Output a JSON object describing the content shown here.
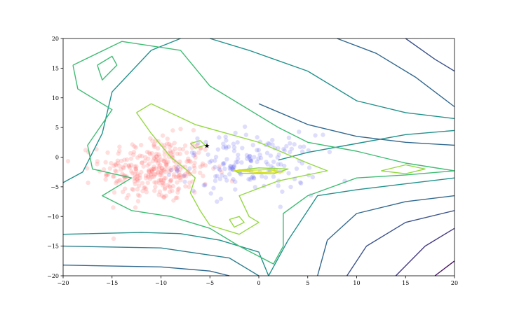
{
  "chart_data": {
    "type": "scatter",
    "title": "",
    "xlabel": "",
    "ylabel": "",
    "xlim": [
      -20,
      20
    ],
    "ylim": [
      -20,
      20
    ],
    "xticks": [
      -20,
      -15,
      -10,
      -5,
      0,
      5,
      10,
      15,
      20
    ],
    "yticks": [
      -20,
      -15,
      -10,
      -5,
      0,
      5,
      10,
      15,
      20
    ],
    "xtick_labels": [
      "−20",
      "−15",
      "−10",
      "−5",
      "0",
      "5",
      "10",
      "15",
      "20"
    ],
    "ytick_labels": [
      "−20",
      "−15",
      "−10",
      "−5",
      "0",
      "5",
      "10",
      "15",
      "20"
    ],
    "grid": false,
    "colors": {
      "class_a": "#ff6b6b",
      "class_b": "#5b5bf0",
      "marker": "#000000"
    },
    "star_point": {
      "x": -5.3,
      "y": 1.9
    },
    "series": [
      {
        "color": "#ff6b6b",
        "alpha": 0.22,
        "center": [
          -10.5,
          -2.0
        ],
        "spread": [
          2.8,
          2.8
        ],
        "count": 320
      },
      {
        "color": "#5b5bf0",
        "alpha": 0.2,
        "center": [
          -1.0,
          -1.2
        ],
        "spread": [
          3.5,
          2.5
        ],
        "count": 170
      }
    ],
    "contours": [
      {
        "color": "#31688e",
        "points": [
          [
            -20,
            -18.2
          ],
          [
            -10,
            -18.5
          ],
          [
            -5,
            -19.2
          ],
          [
            -3,
            -20
          ]
        ]
      },
      {
        "color": "#2c7f8e",
        "points": [
          [
            -20,
            -15
          ],
          [
            -10,
            -15.3
          ],
          [
            -3,
            -17
          ],
          [
            0,
            -20
          ]
        ]
      },
      {
        "color": "#21918c",
        "points": [
          [
            -20,
            -13
          ],
          [
            -12,
            -12.7
          ],
          [
            -8,
            -12.9
          ],
          [
            -4,
            -14
          ],
          [
            0,
            -16
          ],
          [
            1,
            -20
          ]
        ]
      },
      {
        "color": "#21918c",
        "points": [
          [
            -20,
            -4.3
          ],
          [
            -18,
            -2.5
          ],
          [
            -16,
            4
          ],
          [
            -15,
            11
          ],
          [
            -11,
            18
          ],
          [
            -8,
            20
          ]
        ]
      },
      {
        "color": "#21918c",
        "points": [
          [
            -5,
            20
          ],
          [
            -1,
            18
          ],
          [
            5,
            14.5
          ],
          [
            10,
            9.5
          ],
          [
            15,
            7.5
          ],
          [
            20,
            6.5
          ]
        ]
      },
      {
        "color": "#21918c",
        "points": [
          [
            20,
            4.5
          ],
          [
            15,
            3.8
          ],
          [
            10,
            2.3
          ],
          [
            5,
            0.8
          ],
          [
            2,
            -0.5
          ]
        ]
      },
      {
        "color": "#21918c",
        "points": [
          [
            20,
            -3.5
          ],
          [
            15,
            -4.5
          ],
          [
            10,
            -5.5
          ],
          [
            6,
            -6.5
          ],
          [
            3,
            -14
          ],
          [
            1,
            -20
          ]
        ]
      },
      {
        "color": "#31688e",
        "points": [
          [
            8,
            20
          ],
          [
            12,
            17.5
          ],
          [
            16,
            13.5
          ],
          [
            20,
            8.5
          ]
        ]
      },
      {
        "color": "#31688e",
        "points": [
          [
            20,
            2
          ],
          [
            15,
            2.5
          ],
          [
            10,
            3.5
          ],
          [
            5,
            5.5
          ],
          [
            0,
            9
          ]
        ]
      },
      {
        "color": "#31688e",
        "points": [
          [
            20,
            -6.5
          ],
          [
            15,
            -7.5
          ],
          [
            10,
            -9.5
          ],
          [
            7,
            -14
          ],
          [
            6,
            -20
          ]
        ]
      },
      {
        "color": "#3b528b",
        "points": [
          [
            15,
            20
          ],
          [
            18,
            16.5
          ],
          [
            20,
            14.5
          ]
        ]
      },
      {
        "color": "#3b528b",
        "points": [
          [
            20,
            -9
          ],
          [
            15,
            -11
          ],
          [
            11,
            -15
          ],
          [
            9,
            -20
          ]
        ]
      },
      {
        "color": "#443983",
        "points": [
          [
            20,
            -12
          ],
          [
            17,
            -15
          ],
          [
            14,
            -20
          ]
        ]
      },
      {
        "color": "#471365",
        "points": [
          [
            20,
            -17.5
          ],
          [
            18,
            -20
          ]
        ]
      },
      {
        "color": "#3fbc73",
        "points": [
          [
            -19,
            15.5
          ],
          [
            -14,
            19.5
          ],
          [
            -8,
            18
          ],
          [
            -5,
            12
          ],
          [
            2,
            5
          ],
          [
            5,
            2.5
          ],
          [
            10,
            1
          ],
          [
            15,
            -1
          ],
          [
            20,
            -2.3
          ],
          [
            15,
            -3
          ],
          [
            10,
            -3.5
          ],
          [
            5,
            -6.5
          ],
          [
            2.5,
            -9.5
          ],
          [
            2.5,
            -15
          ],
          [
            1.5,
            -18
          ],
          [
            -2,
            -15
          ],
          [
            -5,
            -12
          ],
          [
            -9,
            -10
          ],
          [
            -13,
            -9
          ],
          [
            -16,
            -6.5
          ],
          [
            -13,
            -3.5
          ],
          [
            -17,
            -2
          ],
          [
            -17.5,
            2
          ],
          [
            -15,
            8
          ],
          [
            -18.5,
            11.5
          ],
          [
            -19,
            15.5
          ]
        ]
      },
      {
        "color": "#3fbc73",
        "points": [
          [
            -16.5,
            15.5
          ],
          [
            -15,
            17
          ],
          [
            -14.5,
            15.5
          ],
          [
            -16,
            13
          ],
          [
            -16.5,
            15.5
          ]
        ]
      },
      {
        "color": "#94d840",
        "points": [
          [
            -12.5,
            7.5
          ],
          [
            -11,
            9
          ],
          [
            -6.5,
            5.5
          ],
          [
            0,
            2.5
          ],
          [
            5,
            -1
          ],
          [
            7,
            -2.3
          ],
          [
            2,
            -4
          ],
          [
            -2,
            -6.5
          ],
          [
            -1,
            -10
          ],
          [
            0,
            -11
          ],
          [
            -2,
            -13
          ],
          [
            -5,
            -11.5
          ],
          [
            -6,
            -9
          ],
          [
            -7,
            -6
          ],
          [
            -6.5,
            -3.5
          ],
          [
            -7.5,
            -2
          ],
          [
            -9,
            0
          ],
          [
            -11,
            4
          ],
          [
            -12.5,
            7.5
          ]
        ]
      },
      {
        "color": "#94d840",
        "points": [
          [
            -7,
            2.3
          ],
          [
            -6,
            2.8
          ],
          [
            -5.5,
            2
          ],
          [
            -6.5,
            1.5
          ],
          [
            -7,
            2.3
          ]
        ]
      },
      {
        "color": "#94d840",
        "points": [
          [
            -3,
            -10.5
          ],
          [
            -2,
            -10
          ],
          [
            -1.5,
            -11
          ],
          [
            -2.5,
            -11.8
          ],
          [
            -3,
            -10.5
          ]
        ]
      },
      {
        "color": "#94d840",
        "points": [
          [
            -2.5,
            -2.3
          ],
          [
            0,
            -1.8
          ],
          [
            3,
            -2
          ],
          [
            1.5,
            -2.8
          ],
          [
            -2,
            -2.7
          ],
          [
            -2.5,
            -2.3
          ]
        ]
      },
      {
        "color": "#94d840",
        "points": [
          [
            12.5,
            -2.3
          ],
          [
            15,
            -1.3
          ],
          [
            17,
            -2
          ],
          [
            15,
            -2.8
          ],
          [
            12.5,
            -2.3
          ]
        ]
      },
      {
        "color": "#d4e021",
        "points": [
          [
            -2.5,
            -2.3
          ],
          [
            1,
            -2.1
          ],
          [
            2.5,
            -2.5
          ],
          [
            0,
            -2.6
          ],
          [
            -2.5,
            -2.3
          ]
        ]
      }
    ]
  }
}
